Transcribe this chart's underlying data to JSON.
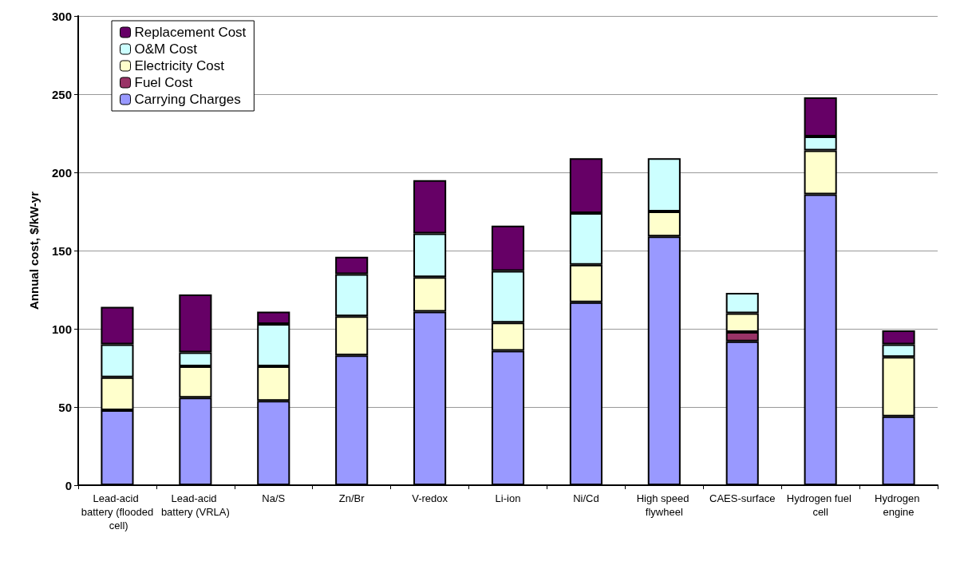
{
  "chart_data": {
    "type": "bar",
    "ylabel": "Annual cost, $/kW-yr",
    "stacked": true,
    "grid": "y",
    "legend": "top left",
    "categories": [
      "Lead-acid battery (flooded cell)",
      "Lead-acid battery (VRLA)",
      "Na/S",
      "Zn/Br",
      "V-redox",
      "Li-ion",
      "Ni/Cd",
      "High speed flywheel",
      "CAES-surface",
      "Hydrogen fuel cell",
      "Hydrogen engine"
    ],
    "series": [
      {
        "name": "Carrying Charges",
        "color": "#9999ff",
        "values": [
          48,
          56,
          54,
          83,
          111,
          86,
          117,
          159,
          92,
          186,
          44
        ]
      },
      {
        "name": "Fuel Cost",
        "color": "#993366",
        "values": [
          null,
          null,
          null,
          null,
          null,
          null,
          null,
          null,
          6,
          null,
          null
        ]
      },
      {
        "name": "Electricity Cost",
        "color": "#ffffcc",
        "values": [
          21,
          20,
          22,
          25,
          22,
          18,
          24,
          16,
          12,
          28,
          38
        ]
      },
      {
        "name": "O&M Cost",
        "color": "#ccffff",
        "values": [
          21,
          9,
          27,
          27,
          28,
          33,
          33,
          34,
          13,
          9,
          8
        ]
      },
      {
        "name": "Replacement Cost",
        "color": "#660066",
        "values": [
          24,
          37,
          8,
          11,
          34,
          29,
          35,
          null,
          null,
          25,
          9
        ]
      }
    ],
    "ylim": [
      0,
      300
    ],
    "yticks": [
      0,
      50,
      100,
      150,
      200,
      250,
      300
    ]
  }
}
